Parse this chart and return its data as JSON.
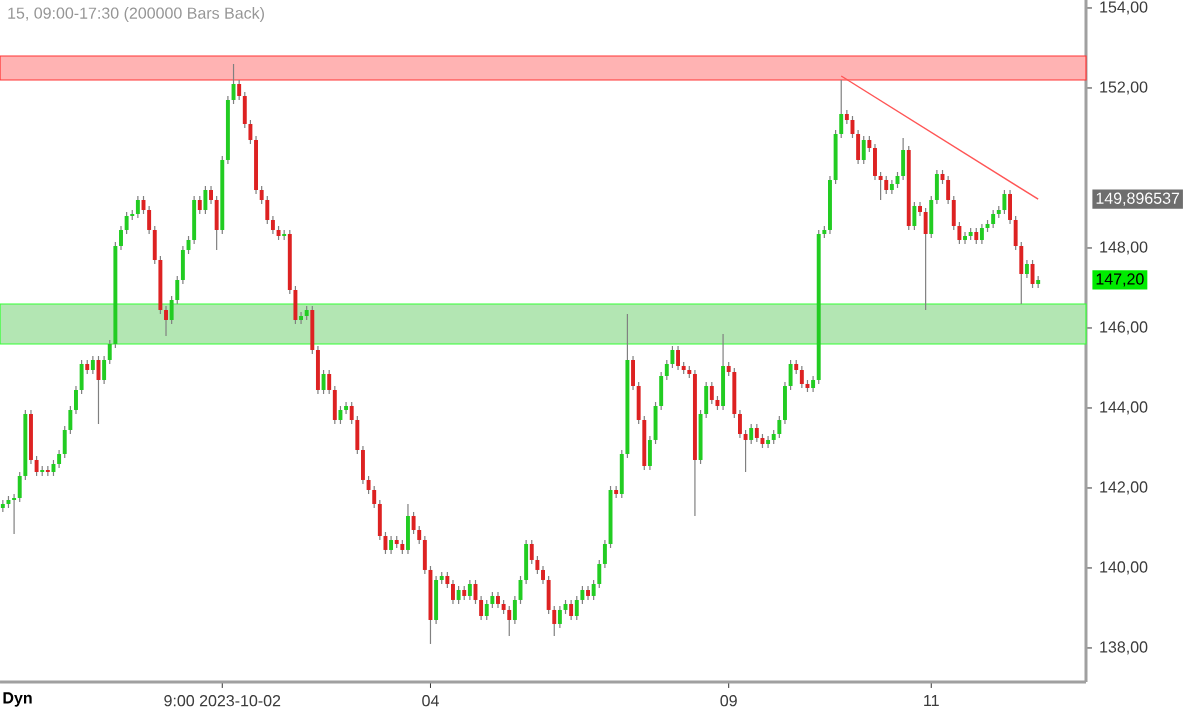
{
  "chart_data": {
    "type": "candlestick",
    "title": "15, 09:00-17:30 (200000 Bars Back)",
    "categories": [
      null,
      null,
      null,
      null,
      null,
      null,
      null,
      null,
      null,
      null,
      null,
      null,
      null,
      null,
      null,
      null,
      null,
      null,
      null,
      null,
      null,
      null,
      null,
      null,
      null,
      null,
      null,
      null,
      null,
      null,
      null,
      null,
      null,
      null,
      null,
      null,
      null,
      null,
      null,
      "9:00 2023-10-02",
      null,
      null,
      null,
      null,
      null,
      null,
      null,
      null,
      null,
      null,
      null,
      null,
      null,
      null,
      null,
      null,
      null,
      null,
      null,
      null,
      null,
      null,
      null,
      null,
      null,
      null,
      null,
      null,
      null,
      null,
      null,
      null,
      null,
      null,
      null,
      null,
      "04",
      null,
      null,
      null,
      null,
      null,
      null,
      null,
      null,
      null,
      null,
      null,
      null,
      null,
      null,
      null,
      null,
      null,
      null,
      null,
      null,
      null,
      null,
      null,
      null,
      null,
      null,
      null,
      null,
      null,
      null,
      null,
      null,
      null,
      null,
      null,
      null,
      null,
      null,
      null,
      null,
      null,
      null,
      null,
      null,
      null,
      null,
      null,
      null,
      null,
      null,
      null,
      null,
      "09",
      null,
      null,
      null,
      null,
      null,
      null,
      null,
      null,
      null,
      null,
      null,
      null,
      null,
      null,
      null,
      null,
      null,
      null,
      null,
      null,
      null,
      null,
      null,
      null,
      null,
      null,
      null,
      null,
      null,
      null,
      null,
      null,
      null,
      null,
      null,
      "11",
      null,
      null,
      null,
      null,
      null,
      null,
      null,
      null,
      null,
      null,
      null,
      null,
      null,
      null,
      null,
      null,
      null,
      null,
      null
    ],
    "ohlc": [
      [
        141.5,
        141.7,
        141.4,
        141.6
      ],
      [
        141.6,
        141.8,
        141.5,
        141.7
      ],
      [
        141.7,
        141.85,
        140.85,
        141.75
      ],
      [
        141.75,
        142.4,
        141.65,
        142.3
      ],
      [
        142.3,
        143.95,
        142.2,
        143.85
      ],
      [
        143.85,
        143.95,
        142.6,
        142.7
      ],
      [
        142.7,
        142.8,
        142.3,
        142.4
      ],
      [
        142.4,
        142.55,
        142.3,
        142.45
      ],
      [
        142.45,
        142.55,
        142.3,
        142.4
      ],
      [
        142.4,
        142.7,
        142.3,
        142.6
      ],
      [
        142.6,
        142.95,
        142.5,
        142.85
      ],
      [
        142.85,
        143.55,
        142.75,
        143.45
      ],
      [
        143.45,
        144.05,
        143.35,
        143.95
      ],
      [
        143.95,
        144.55,
        143.85,
        144.45
      ],
      [
        144.45,
        145.2,
        144.35,
        145.1
      ],
      [
        145.1,
        145.2,
        144.85,
        144.95
      ],
      [
        144.95,
        145.3,
        144.85,
        145.2
      ],
      [
        145.2,
        145.3,
        143.6,
        144.7
      ],
      [
        144.7,
        145.3,
        144.6,
        145.2
      ],
      [
        145.2,
        145.7,
        145.1,
        145.6
      ],
      [
        145.6,
        148.15,
        145.5,
        148.05
      ],
      [
        148.05,
        148.55,
        147.95,
        148.45
      ],
      [
        148.45,
        148.9,
        148.35,
        148.8
      ],
      [
        148.8,
        148.95,
        148.7,
        148.85
      ],
      [
        148.85,
        149.3,
        148.75,
        149.2
      ],
      [
        149.2,
        149.3,
        148.85,
        148.95
      ],
      [
        148.95,
        149.05,
        148.35,
        148.45
      ],
      [
        148.45,
        148.55,
        147.6,
        147.7
      ],
      [
        147.7,
        147.8,
        146.35,
        146.45
      ],
      [
        146.45,
        146.55,
        145.8,
        146.2
      ],
      [
        146.2,
        146.8,
        146.1,
        146.7
      ],
      [
        146.7,
        147.3,
        146.6,
        147.2
      ],
      [
        147.2,
        148.05,
        147.1,
        147.95
      ],
      [
        147.95,
        148.3,
        147.85,
        148.2
      ],
      [
        148.2,
        149.3,
        148.1,
        149.2
      ],
      [
        149.2,
        149.3,
        148.85,
        148.95
      ],
      [
        148.95,
        149.55,
        148.85,
        149.45
      ],
      [
        149.45,
        149.55,
        149.1,
        149.2
      ],
      [
        149.2,
        149.3,
        147.95,
        148.45
      ],
      [
        148.45,
        150.3,
        148.35,
        150.2
      ],
      [
        150.2,
        151.8,
        150.1,
        151.7
      ],
      [
        151.7,
        152.6,
        151.6,
        152.1
      ],
      [
        152.1,
        152.2,
        151.7,
        151.8
      ],
      [
        151.8,
        151.9,
        151.0,
        151.1
      ],
      [
        151.1,
        151.2,
        150.6,
        150.7
      ],
      [
        150.7,
        150.8,
        149.35,
        149.45
      ],
      [
        149.45,
        149.55,
        149.1,
        149.2
      ],
      [
        149.2,
        149.3,
        148.6,
        148.7
      ],
      [
        148.7,
        148.8,
        148.35,
        148.45
      ],
      [
        148.45,
        148.55,
        148.2,
        148.3
      ],
      [
        148.3,
        148.45,
        148.2,
        148.35
      ],
      [
        148.35,
        148.45,
        146.85,
        146.95
      ],
      [
        146.95,
        147.05,
        146.1,
        146.2
      ],
      [
        146.2,
        146.4,
        146.1,
        146.3
      ],
      [
        146.3,
        146.55,
        146.2,
        146.45
      ],
      [
        146.45,
        146.55,
        145.35,
        145.45
      ],
      [
        145.45,
        145.55,
        144.35,
        144.45
      ],
      [
        144.45,
        144.95,
        144.35,
        144.85
      ],
      [
        144.85,
        144.95,
        144.35,
        144.45
      ],
      [
        144.45,
        144.55,
        143.6,
        143.7
      ],
      [
        143.7,
        144.05,
        143.6,
        143.95
      ],
      [
        143.95,
        144.15,
        143.85,
        144.05
      ],
      [
        144.05,
        144.15,
        143.6,
        143.7
      ],
      [
        143.7,
        143.8,
        142.85,
        142.95
      ],
      [
        142.95,
        143.05,
        142.1,
        142.2
      ],
      [
        142.2,
        142.3,
        141.85,
        141.95
      ],
      [
        141.95,
        142.05,
        141.5,
        141.6
      ],
      [
        141.6,
        141.7,
        140.7,
        140.8
      ],
      [
        140.8,
        140.9,
        140.35,
        140.45
      ],
      [
        140.45,
        140.8,
        140.35,
        140.7
      ],
      [
        140.7,
        140.8,
        140.5,
        140.6
      ],
      [
        140.6,
        140.7,
        140.35,
        140.45
      ],
      [
        140.45,
        141.6,
        140.35,
        141.3
      ],
      [
        141.3,
        141.4,
        140.85,
        140.95
      ],
      [
        140.95,
        141.05,
        140.6,
        140.7
      ],
      [
        140.7,
        140.8,
        139.85,
        139.95
      ],
      [
        139.95,
        140.05,
        138.1,
        138.7
      ],
      [
        138.7,
        139.8,
        138.6,
        139.7
      ],
      [
        139.7,
        139.9,
        139.6,
        139.8
      ],
      [
        139.8,
        139.9,
        139.5,
        139.6
      ],
      [
        139.6,
        139.7,
        139.1,
        139.2
      ],
      [
        139.2,
        139.55,
        139.1,
        139.45
      ],
      [
        139.45,
        139.55,
        139.2,
        139.3
      ],
      [
        139.3,
        139.7,
        139.2,
        139.6
      ],
      [
        139.6,
        139.7,
        139.1,
        139.2
      ],
      [
        139.2,
        139.3,
        138.7,
        138.8
      ],
      [
        138.8,
        139.2,
        138.7,
        139.1
      ],
      [
        139.1,
        139.4,
        139.0,
        139.3
      ],
      [
        139.3,
        139.4,
        139.0,
        139.1
      ],
      [
        139.1,
        139.2,
        138.85,
        138.95
      ],
      [
        138.95,
        139.05,
        138.3,
        138.7
      ],
      [
        138.7,
        139.3,
        138.6,
        139.2
      ],
      [
        139.2,
        139.8,
        139.1,
        139.7
      ],
      [
        139.7,
        140.7,
        139.6,
        140.6
      ],
      [
        140.6,
        140.7,
        140.1,
        140.2
      ],
      [
        140.2,
        140.3,
        139.85,
        139.95
      ],
      [
        139.95,
        140.05,
        139.6,
        139.7
      ],
      [
        139.7,
        139.8,
        138.85,
        138.95
      ],
      [
        138.95,
        139.05,
        138.3,
        138.6
      ],
      [
        138.6,
        139.05,
        138.5,
        138.95
      ],
      [
        138.95,
        139.2,
        138.85,
        139.1
      ],
      [
        139.1,
        139.2,
        138.7,
        138.8
      ],
      [
        138.8,
        139.3,
        138.7,
        139.2
      ],
      [
        139.2,
        139.55,
        139.1,
        139.45
      ],
      [
        139.45,
        139.55,
        139.2,
        139.3
      ],
      [
        139.3,
        139.7,
        139.2,
        139.6
      ],
      [
        139.6,
        140.2,
        139.5,
        140.1
      ],
      [
        140.1,
        140.7,
        140.0,
        140.6
      ],
      [
        140.6,
        142.05,
        140.5,
        141.95
      ],
      [
        141.95,
        142.05,
        141.75,
        141.85
      ],
      [
        141.85,
        142.95,
        141.75,
        142.85
      ],
      [
        142.85,
        146.35,
        142.75,
        145.2
      ],
      [
        145.2,
        145.3,
        144.45,
        144.55
      ],
      [
        144.55,
        144.65,
        143.6,
        143.7
      ],
      [
        143.7,
        143.8,
        142.45,
        142.55
      ],
      [
        142.55,
        143.3,
        142.45,
        143.2
      ],
      [
        143.2,
        144.15,
        143.1,
        144.05
      ],
      [
        144.05,
        144.9,
        143.95,
        144.8
      ],
      [
        144.8,
        145.2,
        144.7,
        145.1
      ],
      [
        145.1,
        145.55,
        145.0,
        145.45
      ],
      [
        145.45,
        145.55,
        144.95,
        145.05
      ],
      [
        145.05,
        145.15,
        144.85,
        144.95
      ],
      [
        144.95,
        145.05,
        144.75,
        144.85
      ],
      [
        144.85,
        144.95,
        141.3,
        142.7
      ],
      [
        142.7,
        143.95,
        142.6,
        143.85
      ],
      [
        143.85,
        144.65,
        143.75,
        144.55
      ],
      [
        144.55,
        144.65,
        144.1,
        144.2
      ],
      [
        144.2,
        144.3,
        143.95,
        144.05
      ],
      [
        144.05,
        145.85,
        143.95,
        145.05
      ],
      [
        145.05,
        145.15,
        144.8,
        144.9
      ],
      [
        144.9,
        145.0,
        143.75,
        143.85
      ],
      [
        143.85,
        143.95,
        143.25,
        143.35
      ],
      [
        143.35,
        143.45,
        142.4,
        143.2
      ],
      [
        143.2,
        143.6,
        143.1,
        143.5
      ],
      [
        143.5,
        143.6,
        143.15,
        143.25
      ],
      [
        143.25,
        143.35,
        143.0,
        143.1
      ],
      [
        143.1,
        143.3,
        143.0,
        143.2
      ],
      [
        143.2,
        143.45,
        143.1,
        143.35
      ],
      [
        143.35,
        143.8,
        143.25,
        143.7
      ],
      [
        143.7,
        144.65,
        143.6,
        144.55
      ],
      [
        144.55,
        145.2,
        144.45,
        145.1
      ],
      [
        145.1,
        145.2,
        144.85,
        144.95
      ],
      [
        144.95,
        145.05,
        144.5,
        144.6
      ],
      [
        144.6,
        144.7,
        144.4,
        144.5
      ],
      [
        144.5,
        144.8,
        144.4,
        144.7
      ],
      [
        144.7,
        148.45,
        144.6,
        148.35
      ],
      [
        148.35,
        148.55,
        148.25,
        148.45
      ],
      [
        148.45,
        149.8,
        148.35,
        149.7
      ],
      [
        149.7,
        150.95,
        149.6,
        150.85
      ],
      [
        150.85,
        152.2,
        150.75,
        151.35
      ],
      [
        151.35,
        151.45,
        151.1,
        151.2
      ],
      [
        151.2,
        151.3,
        150.75,
        150.85
      ],
      [
        150.85,
        150.95,
        150.1,
        150.2
      ],
      [
        150.2,
        150.8,
        150.1,
        150.7
      ],
      [
        150.7,
        150.8,
        150.4,
        150.5
      ],
      [
        150.5,
        150.6,
        149.7,
        149.8
      ],
      [
        149.8,
        149.9,
        149.2,
        149.7
      ],
      [
        149.7,
        149.8,
        149.35,
        149.45
      ],
      [
        149.45,
        149.7,
        149.35,
        149.6
      ],
      [
        149.6,
        149.9,
        149.5,
        149.8
      ],
      [
        149.8,
        150.75,
        149.7,
        150.45
      ],
      [
        150.45,
        150.55,
        148.45,
        148.55
      ],
      [
        148.55,
        149.15,
        148.45,
        149.05
      ],
      [
        149.05,
        149.15,
        148.8,
        148.9
      ],
      [
        148.9,
        149.0,
        146.45,
        148.35
      ],
      [
        148.35,
        149.3,
        148.25,
        149.2
      ],
      [
        149.2,
        149.95,
        149.1,
        149.85
      ],
      [
        149.85,
        149.95,
        149.6,
        149.7
      ],
      [
        149.7,
        149.8,
        149.1,
        149.2
      ],
      [
        149.2,
        149.3,
        148.45,
        148.55
      ],
      [
        148.55,
        148.65,
        148.1,
        148.2
      ],
      [
        148.2,
        148.4,
        148.1,
        148.3
      ],
      [
        148.3,
        148.5,
        148.2,
        148.4
      ],
      [
        148.4,
        148.5,
        148.1,
        148.2
      ],
      [
        148.2,
        148.6,
        148.1,
        148.5
      ],
      [
        148.5,
        148.7,
        148.4,
        148.6
      ],
      [
        148.6,
        148.95,
        148.5,
        148.85
      ],
      [
        148.85,
        149.05,
        148.75,
        148.95
      ],
      [
        148.95,
        149.45,
        148.85,
        149.35
      ],
      [
        149.35,
        149.45,
        148.6,
        148.7
      ],
      [
        148.7,
        148.8,
        147.95,
        148.05
      ],
      [
        148.05,
        148.15,
        146.6,
        147.35
      ],
      [
        147.35,
        147.7,
        147.25,
        147.6
      ],
      [
        147.6,
        147.7,
        147.0,
        147.1
      ],
      [
        147.1,
        147.3,
        147.0,
        147.2
      ]
    ],
    "colors": [
      "#22cc22",
      "#22cc22",
      "#22cc22",
      "#22cc22",
      "#22cc22",
      "#dd2222",
      "#dd2222",
      "#22cc22",
      "#dd2222",
      "#22cc22",
      "#22cc22",
      "#22cc22",
      "#22cc22",
      "#22cc22",
      "#22cc22",
      "#dd2222",
      "#22cc22",
      "#dd2222",
      "#22cc22",
      "#22cc22",
      "#22cc22",
      "#22cc22",
      "#22cc22",
      "#22cc22",
      "#22cc22",
      "#dd2222",
      "#dd2222",
      "#dd2222",
      "#dd2222",
      "#dd2222",
      "#22cc22",
      "#22cc22",
      "#22cc22",
      "#22cc22",
      "#22cc22",
      "#dd2222",
      "#22cc22",
      "#dd2222",
      "#dd2222",
      "#22cc22",
      "#22cc22",
      "#22cc22",
      "#dd2222",
      "#dd2222",
      "#dd2222",
      "#dd2222",
      "#dd2222",
      "#dd2222",
      "#dd2222",
      "#dd2222",
      "#22cc22",
      "#dd2222",
      "#dd2222",
      "#22cc22",
      "#22cc22",
      "#dd2222",
      "#dd2222",
      "#22cc22",
      "#dd2222",
      "#dd2222",
      "#22cc22",
      "#22cc22",
      "#dd2222",
      "#dd2222",
      "#dd2222",
      "#dd2222",
      "#dd2222",
      "#dd2222",
      "#dd2222",
      "#22cc22",
      "#dd2222",
      "#dd2222",
      "#22cc22",
      "#dd2222",
      "#dd2222",
      "#dd2222",
      "#dd2222",
      "#22cc22",
      "#22cc22",
      "#dd2222",
      "#dd2222",
      "#22cc22",
      "#dd2222",
      "#22cc22",
      "#dd2222",
      "#dd2222",
      "#22cc22",
      "#22cc22",
      "#dd2222",
      "#dd2222",
      "#dd2222",
      "#22cc22",
      "#22cc22",
      "#22cc22",
      "#dd2222",
      "#dd2222",
      "#dd2222",
      "#dd2222",
      "#dd2222",
      "#22cc22",
      "#22cc22",
      "#dd2222",
      "#22cc22",
      "#22cc22",
      "#dd2222",
      "#22cc22",
      "#22cc22",
      "#22cc22",
      "#22cc22",
      "#dd2222",
      "#22cc22",
      "#22cc22",
      "#dd2222",
      "#dd2222",
      "#dd2222",
      "#22cc22",
      "#22cc22",
      "#22cc22",
      "#22cc22",
      "#22cc22",
      "#dd2222",
      "#dd2222",
      "#dd2222",
      "#dd2222",
      "#22cc22",
      "#22cc22",
      "#dd2222",
      "#dd2222",
      "#22cc22",
      "#dd2222",
      "#dd2222",
      "#dd2222",
      "#dd2222",
      "#22cc22",
      "#dd2222",
      "#dd2222",
      "#22cc22",
      "#22cc22",
      "#22cc22",
      "#22cc22",
      "#22cc22",
      "#dd2222",
      "#dd2222",
      "#dd2222",
      "#22cc22",
      "#22cc22",
      "#22cc22",
      "#22cc22",
      "#22cc22",
      "#22cc22",
      "#dd2222",
      "#dd2222",
      "#dd2222",
      "#22cc22",
      "#dd2222",
      "#dd2222",
      "#dd2222",
      "#dd2222",
      "#22cc22",
      "#22cc22",
      "#22cc22",
      "#dd2222",
      "#22cc22",
      "#dd2222",
      "#dd2222",
      "#22cc22",
      "#22cc22",
      "#dd2222",
      "#dd2222",
      "#dd2222",
      "#dd2222",
      "#22cc22",
      "#22cc22",
      "#dd2222",
      "#22cc22",
      "#22cc22",
      "#22cc22",
      "#22cc22",
      "#22cc22",
      "#dd2222",
      "#dd2222",
      "#dd2222",
      "#22cc22",
      "#dd2222",
      "#22cc22"
    ],
    "series": [
      {
        "type": "line",
        "color": "#ff5555",
        "values": [
          null,
          null,
          null,
          null,
          null,
          null,
          null,
          null,
          null,
          null,
          null,
          null,
          null,
          null,
          null,
          null,
          null,
          null,
          null,
          null,
          null,
          null,
          null,
          null,
          null,
          null,
          null,
          null,
          null,
          null,
          null,
          null,
          null,
          null,
          null,
          null,
          null,
          null,
          null,
          null,
          null,
          null,
          null,
          null,
          null,
          null,
          null,
          null,
          null,
          null,
          null,
          null,
          null,
          null,
          null,
          null,
          null,
          null,
          null,
          null,
          null,
          null,
          null,
          null,
          null,
          null,
          null,
          null,
          null,
          null,
          null,
          null,
          null,
          null,
          null,
          null,
          null,
          null,
          null,
          null,
          null,
          null,
          null,
          null,
          null,
          null,
          null,
          null,
          null,
          null,
          null,
          null,
          null,
          null,
          null,
          null,
          null,
          null,
          null,
          null,
          null,
          null,
          null,
          null,
          null,
          null,
          null,
          null,
          null,
          null,
          null,
          null,
          null,
          null,
          null,
          null,
          null,
          null,
          null,
          null,
          null,
          null,
          null,
          null,
          null,
          null,
          null,
          null,
          null,
          null,
          null,
          null,
          null,
          null,
          null,
          null,
          null,
          null,
          null,
          null,
          null,
          null,
          null,
          null,
          null,
          null,
          null,
          null,
          null,
          152.3,
          null,
          null,
          null,
          null,
          null,
          null,
          null,
          null,
          null,
          null,
          null,
          null,
          null,
          null,
          null,
          null,
          null,
          null,
          null,
          null,
          null,
          null,
          null,
          null,
          null,
          null,
          null,
          null,
          null,
          null,
          null,
          null,
          null,
          null,
          149.22
        ]
      }
    ],
    "bands": [
      {
        "axis": "y",
        "from": 152.2,
        "to": 152.8,
        "color": "#ffb3b3"
      },
      {
        "axis": "y",
        "from": 145.6,
        "to": 146.6,
        "color": "#b3e6b3"
      }
    ],
    "ylim": [
      137.15,
      154.2
    ],
    "yticks": [
      {
        "value": 138,
        "label": "138,00"
      },
      {
        "value": 140,
        "label": "140,00"
      },
      {
        "value": 142,
        "label": "142,00"
      },
      {
        "value": 144,
        "label": "144,00"
      },
      {
        "value": 146,
        "label": "146,00"
      },
      {
        "value": 148,
        "label": "148,00"
      },
      {
        "value": 152,
        "label": "152,00"
      },
      {
        "value": 154,
        "label": "154,00"
      }
    ],
    "annotations": [
      "149,896537",
      "147,20",
      "Dyn"
    ]
  }
}
